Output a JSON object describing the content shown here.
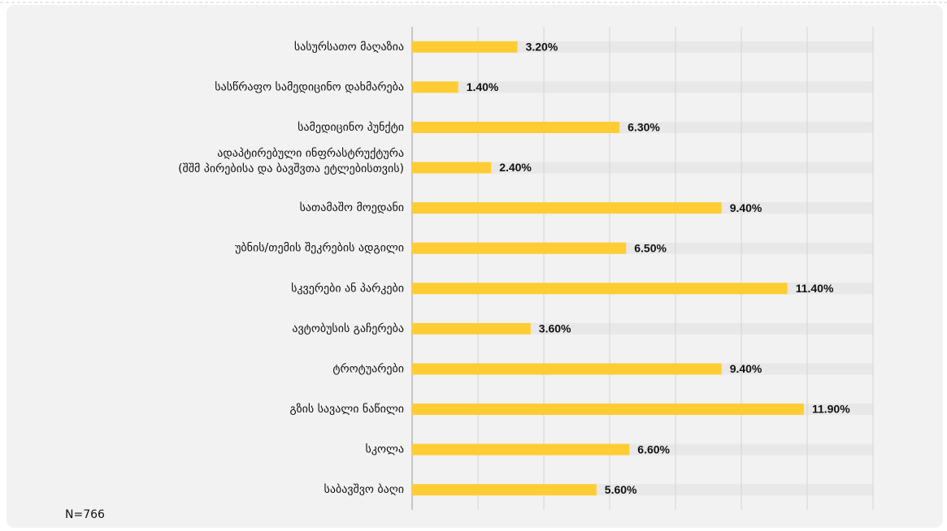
{
  "chart_data": {
    "type": "bar",
    "orientation": "horizontal",
    "categories": [
      "სასურსათო მაღაზია",
      "სასწრაფო სამედიცინო დახმარება",
      "სამედიცინო პუნქტი",
      "ადაპტირებული ინფრასტრუქტურა\n(შშმ პირებისა და ბავშვთა ეტლებისთვის)",
      "სათამაშო მოედანი",
      "უბნის/თემის შეკრების ადგილი",
      "სკვერები ან პარკები",
      "ავტობუსის გაჩერება",
      "ტროტუარები",
      "გზის სავალი ნაწილი",
      "სკოლა",
      "საბავშვო ბაღი"
    ],
    "values": [
      3.2,
      1.4,
      6.3,
      2.4,
      9.4,
      6.5,
      11.4,
      3.6,
      9.4,
      11.9,
      6.6,
      5.6
    ],
    "value_labels": [
      "3.20%",
      "1.40%",
      "6.30%",
      "2.40%",
      "9.40%",
      "6.50%",
      "11.40%",
      "3.60%",
      "9.40%",
      "11.90%",
      "6.60%",
      "5.60%"
    ],
    "color": "#ffcd33",
    "track_color": "#e8e8e8",
    "xlim": [
      0,
      14
    ],
    "xticks": [
      0,
      2,
      4,
      6,
      8,
      10,
      12,
      14
    ],
    "grid": true,
    "note": "N=766"
  }
}
